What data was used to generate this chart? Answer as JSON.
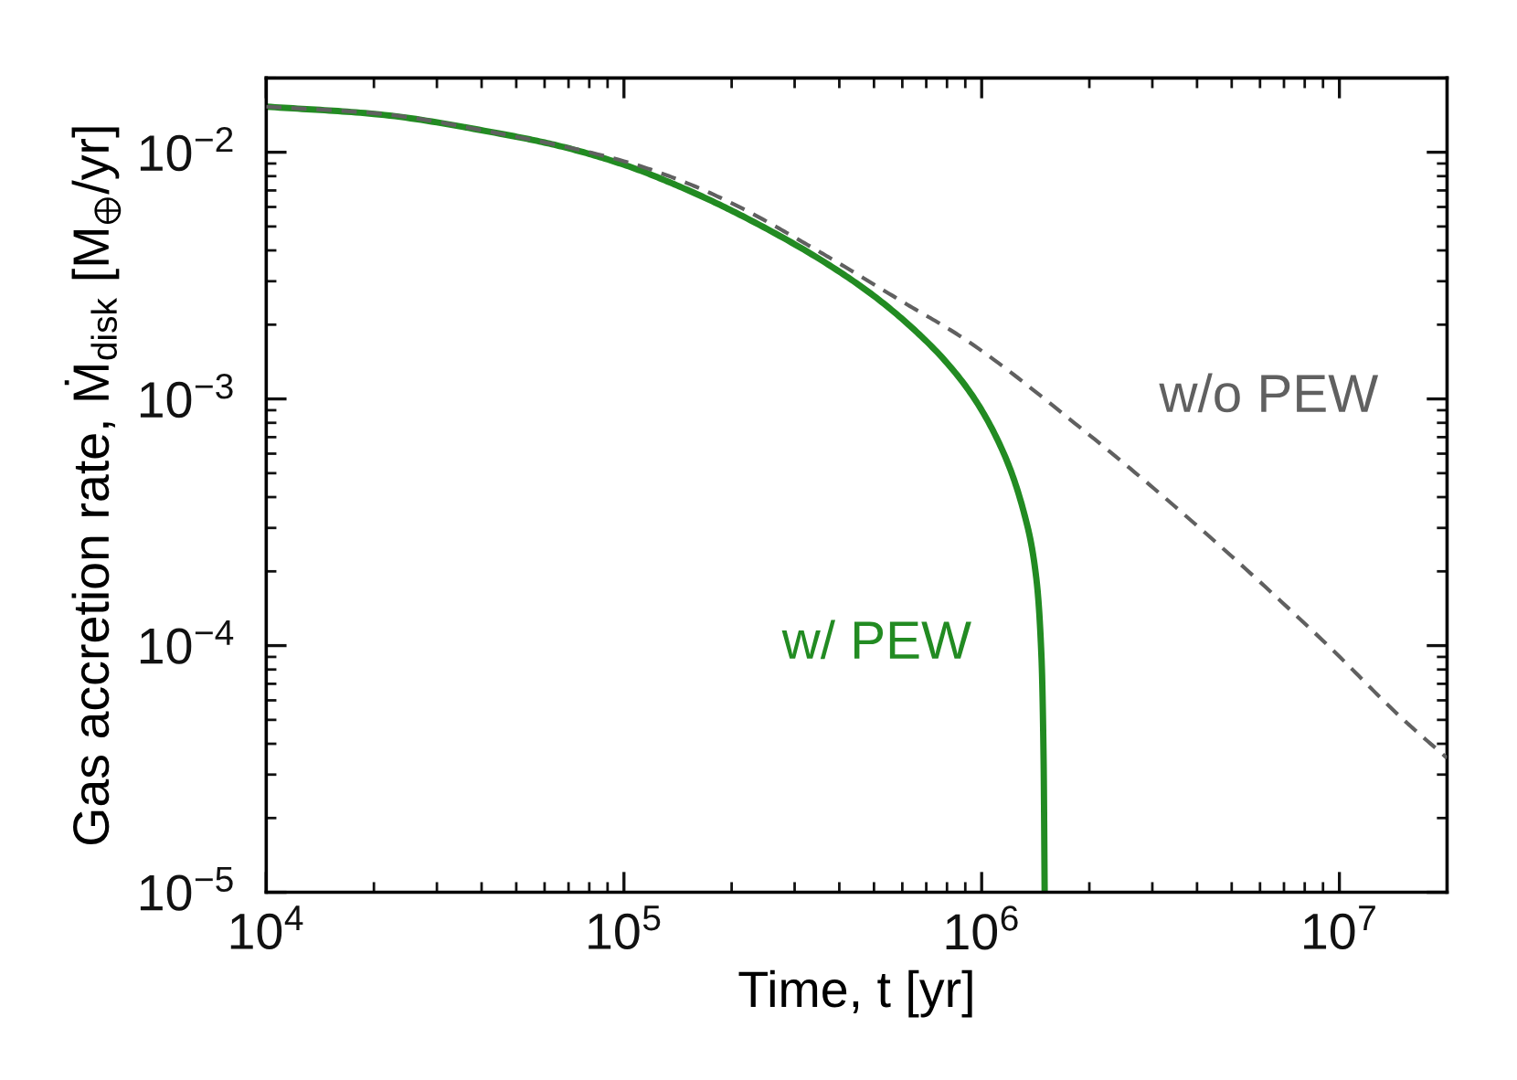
{
  "chart_data": {
    "type": "line",
    "xlabel": "Time, t [yr]",
    "ylabel": "Gas accretion rate, Ṁ$_{disk}$ [M$_{⊕}$/yr]",
    "log": "xy",
    "grid": false,
    "legend": false,
    "xlim": [
      10000,
      20000000
    ],
    "ylim": [
      1e-05,
      0.02
    ],
    "xticks": [
      {
        "value": 10000,
        "label": "10$^{4}$"
      },
      {
        "value": 100000,
        "label": "10$^{5}$"
      },
      {
        "value": 1000000,
        "label": "10$^{6}$"
      },
      {
        "value": 10000000,
        "label": "10$^{7}$"
      }
    ],
    "yticks": [
      {
        "value": 1e-05,
        "label": "10$^{−5}$"
      },
      {
        "value": 0.0001,
        "label": "10$^{−4}$"
      },
      {
        "value": 0.001,
        "label": "10$^{−3}$"
      },
      {
        "value": 0.01,
        "label": "10$^{−2}$"
      }
    ],
    "series": [
      {
        "name": "w/ PEW",
        "color": "#228b22",
        "line_style": "solid",
        "x": [
          10000,
          20000,
          45000,
          66000,
          100000,
          145000,
          215000,
          404000,
          597000,
          885000,
          1120000,
          1310000,
          1420000,
          1470000,
          1490000,
          1500000
        ],
        "values": [
          0.0153,
          0.0143,
          0.0119,
          0.0106,
          0.0089,
          0.0072,
          0.0055,
          0.00325,
          0.00212,
          0.00117,
          0.00066,
          0.00035,
          0.00019,
          8.9e-05,
          3.4e-05,
          1e-05
        ]
      },
      {
        "name": "w/o PEW",
        "color": "#606060",
        "line_style": "dashed",
        "x": [
          10000,
          20000,
          45000,
          100000,
          150000,
          215000,
          320000,
          400000,
          600000,
          890000,
          1940000,
          4200000,
          9300000,
          14900000,
          20000000
        ],
        "values": [
          0.0153,
          0.0144,
          0.0119,
          0.0092,
          0.0075,
          0.0059,
          0.00428,
          0.00354,
          0.00248,
          0.00176,
          0.00074,
          0.000288,
          0.0001,
          5.1e-05,
          3.5e-05
        ]
      }
    ]
  }
}
